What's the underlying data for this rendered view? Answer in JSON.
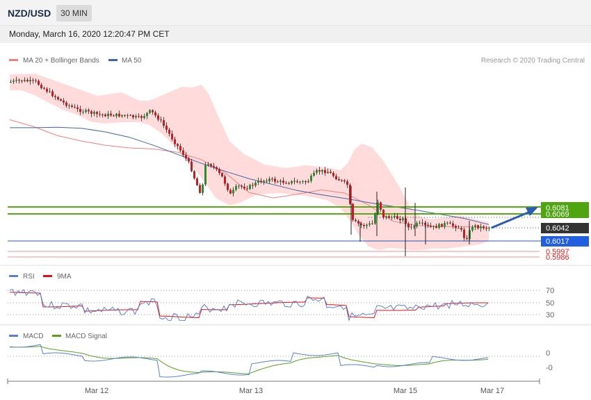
{
  "header": {
    "symbol": "NZD/USD",
    "timeframe": "30 MIN",
    "datetime": "Monday, March 16, 2020 12:20:47 PM CET"
  },
  "legend": {
    "ma20": "MA 20 + Bollinger Bands",
    "ma50": "MA 50",
    "credit": "Research © 2020 Trading Central"
  },
  "colors": {
    "bull": "#2e8b2e",
    "bear": "#c41d1d",
    "ma20": "#f08080",
    "ma50": "#3f63a8",
    "bands": "#ffd9d9",
    "resistance": "#55aa11",
    "support": "#1f5fe0",
    "low_lines": "#f09090",
    "rsi": "#5b7fd6",
    "rsi_ma": "#e01010",
    "macd": "#5b7fd6",
    "macd_signal": "#5aa020",
    "arrow": "#2a5db0",
    "current": "#333333"
  },
  "price_levels": [
    {
      "label": "0.6081",
      "kind": "resistance"
    },
    {
      "label": "0.6069",
      "kind": "resistance"
    },
    {
      "label": "0.6042",
      "kind": "current"
    },
    {
      "label": "0.6017",
      "kind": "support"
    },
    {
      "label": "0.5997",
      "kind": "low"
    },
    {
      "label": "0.5986",
      "kind": "low"
    }
  ],
  "rsi_panel": {
    "legend": [
      "RSI",
      "9MA"
    ],
    "levels": [
      "70",
      "50",
      "30"
    ]
  },
  "macd_panel": {
    "legend": [
      "MACD",
      "MACD Signal"
    ],
    "levels": [
      "0",
      "-0"
    ]
  },
  "x_axis": {
    "labels": [
      "Mar 12",
      "Mar 13",
      "Mar 15",
      "Mar 17"
    ]
  },
  "chart_data": {
    "type": "line",
    "title": "NZD/USD",
    "x_ticks": [
      "Mar 12",
      "Mar 13",
      "Mar 15",
      "Mar 17"
    ],
    "series": [
      {
        "name": "MA 20 + Bollinger Bands",
        "values": [
          0.6245,
          0.6232,
          0.6215,
          0.6205,
          0.6197,
          0.6192,
          0.619,
          0.6184,
          0.617,
          0.6145,
          0.6108,
          0.6098,
          0.6105,
          0.6113,
          0.6107,
          0.6084,
          0.6054,
          0.6046,
          0.6044,
          0.6044,
          0.6042
        ]
      },
      {
        "name": "MA 50",
        "values": [
          0.623,
          0.623,
          0.6231,
          0.6229,
          0.6222,
          0.6212,
          0.6197,
          0.618,
          0.6163,
          0.6148,
          0.6134,
          0.6123,
          0.6112,
          0.6104,
          0.6097,
          0.6089,
          0.6082,
          0.6075,
          0.6067,
          0.6059,
          0.6048
        ]
      }
    ]
  }
}
